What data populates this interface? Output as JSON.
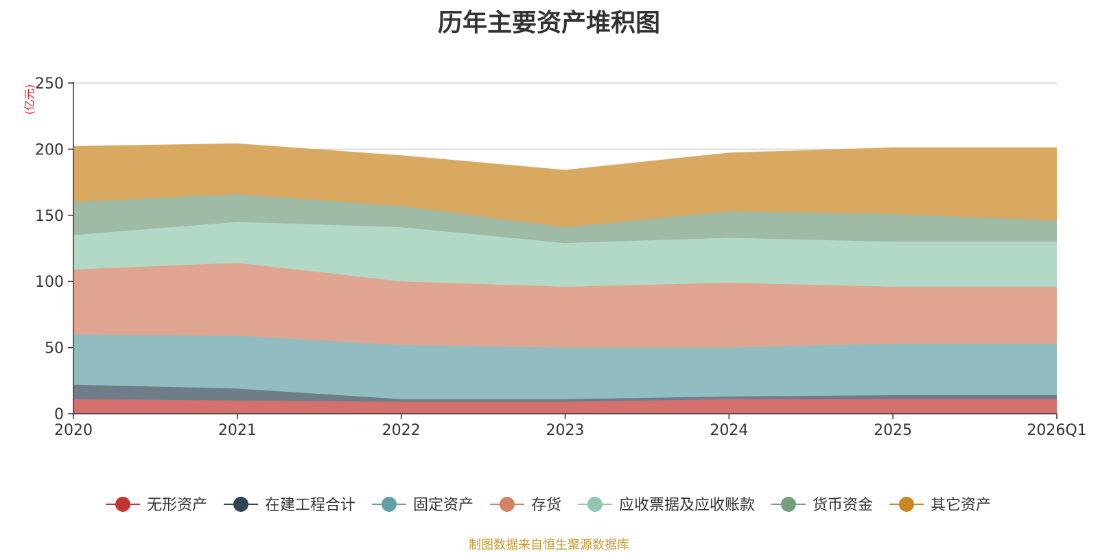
{
  "chart_data": {
    "type": "area",
    "stacked": true,
    "title": "历年主要资产堆积图",
    "unit_label": "(亿元)",
    "x": [
      "2020",
      "2021",
      "2022",
      "2023",
      "2024",
      "2025",
      "2026Q1"
    ],
    "ylim": [
      0,
      250
    ],
    "yticks": [
      0,
      50,
      100,
      150,
      200,
      250
    ],
    "grid": true,
    "legend_position": "bottom",
    "series": [
      {
        "name": "无形资产",
        "color": "#c23531",
        "fill": "#d4706e",
        "values": [
          11,
          10,
          9,
          9,
          11,
          11,
          11
        ]
      },
      {
        "name": "在建工程合计",
        "color": "#2f4554",
        "fill": "#6e7d88",
        "values": [
          11,
          9,
          2,
          2,
          2,
          3,
          3
        ]
      },
      {
        "name": "固定资产",
        "color": "#61a0a8",
        "fill": "#90bcc2",
        "values": [
          38,
          40,
          41,
          39,
          37,
          39,
          39
        ]
      },
      {
        "name": "存货",
        "color": "#d48265",
        "fill": "#e0a591",
        "values": [
          49,
          55,
          48,
          46,
          49,
          43,
          43
        ]
      },
      {
        "name": "应收票据及应收账款",
        "color": "#91c7ae",
        "fill": "#b2d8c6",
        "values": [
          26,
          31,
          41,
          33,
          34,
          34,
          34
        ]
      },
      {
        "name": "货币资金",
        "color": "#749f83",
        "fill": "#9fbaa5",
        "values": [
          25,
          21,
          16,
          12,
          20,
          21,
          16
        ]
      },
      {
        "name": "其它资产",
        "color": "#ca8622",
        "fill": "#d9a962",
        "values": [
          42,
          38,
          38,
          43,
          44,
          50,
          55
        ]
      }
    ],
    "source_note": "制图数据来自恒生聚源数据库"
  }
}
